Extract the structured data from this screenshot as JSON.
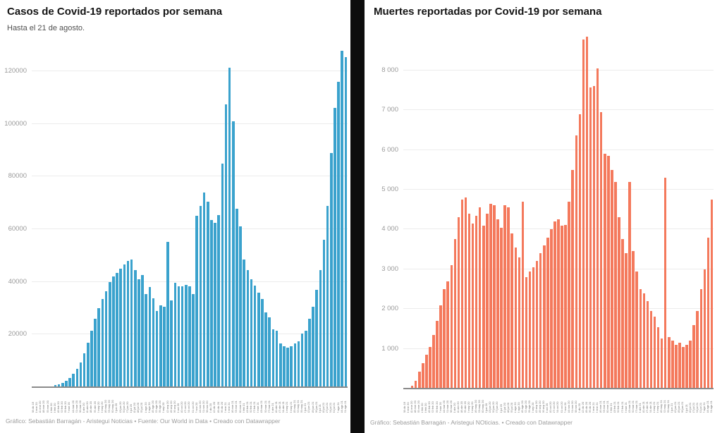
{
  "chart_data": [
    {
      "type": "bar",
      "title": "Casos de Covid-19 reportados por semana",
      "subtitle": "Hasta el 21 de agosto.",
      "footer": "Gráfico: Sebastián Barragán - Aristegui Noticias • Fuente: Our World in Data • Creado con Datawrapper",
      "bar_color": "#3aa2cd",
      "grid": true,
      "legend": "none",
      "ylim": [
        0,
        129700
      ],
      "yticks": [
        {
          "value": 20000,
          "label": "20000"
        },
        {
          "value": 40000,
          "label": "40000"
        },
        {
          "value": 60000,
          "label": "60000"
        },
        {
          "value": 80000,
          "label": "80000"
        },
        {
          "value": 100000,
          "label": "100000"
        },
        {
          "value": 120000,
          "label": "120000"
        }
      ],
      "x_labels": [
        "28 dic 19",
        "4 ene 20",
        "11 ene 20",
        "18 ene 20",
        "25 ene 20",
        "1 feb 20",
        "8 feb 20",
        "15 feb 20",
        "22 feb 20",
        "29 feb 20",
        "7 mar 20",
        "14 mar 20",
        "21 mar 20",
        "28 mar 20",
        "4 abr 20",
        "11 abr 20",
        "18 abr 20",
        "25 abr 20",
        "2 may 20",
        "9 may 20",
        "16 may 20",
        "23 may 20",
        "30 may 20",
        "6 jun 20",
        "13 jun 20",
        "20 jun 20",
        "27 jun 20",
        "4 jul 20",
        "11 jul 20",
        "18 jul 20",
        "25 jul 20",
        "1 ago 20",
        "8 ago 20",
        "15 ago 20",
        "22 ago 20",
        "29 ago 20",
        "5 sep 20",
        "12 sep 20",
        "19 sep 20",
        "26 sep 20",
        "3 oct 20",
        "10 oct 20",
        "17 oct 20",
        "24 oct 20",
        "31 oct 20",
        "7 nov 20",
        "14 nov 20",
        "21 nov 20",
        "28 nov 20",
        "5 dic 20",
        "12 dic 20",
        "19 dic 20",
        "26 dic 20",
        "2 ene 21",
        "9 ene 21",
        "16 ene 21",
        "23 ene 21",
        "30 ene 21",
        "6 feb 21",
        "13 feb 21",
        "20 feb 21",
        "27 feb 21",
        "6 mar 21",
        "13 mar 21",
        "20 mar 21",
        "27 mar 21",
        "3 abr 21",
        "10 abr 21",
        "17 abr 21",
        "24 abr 21",
        "1 may 21",
        "8 may 21",
        "15 may 21",
        "22 may 21",
        "29 may 21",
        "5 jun 21",
        "12 jun 21",
        "19 jun 21",
        "26 jun 21",
        "3 jul 21",
        "10 jul 21",
        "17 jul 21",
        "24 jul 21",
        "31 jul 21",
        "7 ago 21",
        "14 ago 21",
        "21 ago 21"
      ],
      "values": [
        0,
        0,
        0,
        100,
        200,
        400,
        700,
        1100,
        1700,
        2500,
        3600,
        5000,
        7000,
        9500,
        13000,
        17000,
        21500,
        26000,
        30000,
        33500,
        36500,
        40000,
        42000,
        43500,
        45000,
        46500,
        48000,
        48500,
        44500,
        41000,
        42500,
        35400,
        38100,
        33900,
        29000,
        31200,
        30600,
        55300,
        33000,
        39700,
        38400,
        38400,
        38900,
        38400,
        35400,
        65000,
        69000,
        74000,
        70500,
        63500,
        62500,
        65500,
        85000,
        107500,
        121400,
        101000,
        67700,
        61000,
        48500,
        44500,
        41000,
        38500,
        36000,
        33500,
        28500,
        26500,
        22000,
        21500,
        16500,
        15500,
        15000,
        15500,
        16500,
        17500,
        20500,
        21500,
        26000,
        30500,
        37000,
        44500,
        56000,
        69000,
        89000,
        106000,
        116000,
        127800,
        125400
      ]
    },
    {
      "type": "bar",
      "title": "Muertes reportadas por Covid-19 por semana",
      "subtitle": "",
      "footer": "Gráfico: Sebastián Barragán - Aristegui NOticias. • Creado con Datawrapper",
      "bar_color": "#f4795c",
      "grid": true,
      "legend": "none",
      "ylim": [
        0,
        8880
      ],
      "yticks": [
        {
          "value": 1000,
          "label": "1 000"
        },
        {
          "value": 2000,
          "label": "2 000"
        },
        {
          "value": 3000,
          "label": "3 000"
        },
        {
          "value": 4000,
          "label": "4 000"
        },
        {
          "value": 5000,
          "label": "5 000"
        },
        {
          "value": 6000,
          "label": "6 000"
        },
        {
          "value": 7000,
          "label": "7 000"
        },
        {
          "value": 8000,
          "label": "8 000"
        }
      ],
      "x_labels": [
        "28 dic 19",
        "4 ene 20",
        "11 ene 20",
        "18 ene 20",
        "25 ene 20",
        "1 feb 20",
        "8 feb 20",
        "15 feb 20",
        "22 feb 20",
        "29 feb 20",
        "7 mar 20",
        "14 mar 20",
        "21 mar 20",
        "28 mar 20",
        "4 abr 20",
        "11 abr 20",
        "18 abr 20",
        "25 abr 20",
        "2 may 20",
        "9 may 20",
        "16 may 20",
        "23 may 20",
        "30 may 20",
        "6 jun 20",
        "13 jun 20",
        "20 jun 20",
        "27 jun 20",
        "4 jul 20",
        "11 jul 20",
        "18 jul 20",
        "25 jul 20",
        "1 ago 20",
        "8 ago 20",
        "15 ago 20",
        "22 ago 20",
        "29 ago 20",
        "5 sep 20",
        "12 sep 20",
        "19 sep 20",
        "26 sep 20",
        "3 oct 20",
        "10 oct 20",
        "17 oct 20",
        "24 oct 20",
        "31 oct 20",
        "7 nov 20",
        "14 nov 20",
        "21 nov 20",
        "28 nov 20",
        "5 dic 20",
        "12 dic 20",
        "19 dic 20",
        "26 dic 20",
        "2 ene 21",
        "9 ene 21",
        "16 ene 21",
        "23 ene 21",
        "30 ene 21",
        "6 feb 21",
        "13 feb 21",
        "20 feb 21",
        "27 feb 21",
        "6 mar 21",
        "13 mar 21",
        "20 mar 21",
        "27 mar 21",
        "3 abr 21",
        "10 abr 21",
        "17 abr 21",
        "24 abr 21",
        "1 may 21",
        "8 may 21",
        "15 may 21",
        "22 may 21",
        "29 may 21",
        "5 jun 21",
        "12 jun 21",
        "19 jun 21",
        "26 jun 21",
        "3 jul 21",
        "10 jul 21",
        "17 jul 21",
        "24 jul 21",
        "31 jul 21",
        "7 ago 21",
        "14 ago 21",
        "21 ago 21"
      ],
      "values": [
        0,
        0,
        70,
        200,
        420,
        640,
        850,
        1050,
        1350,
        1700,
        2100,
        2500,
        2700,
        3100,
        3750,
        4300,
        4750,
        4800,
        4400,
        4150,
        4350,
        4550,
        4100,
        4400,
        4650,
        4600,
        4250,
        4050,
        4600,
        4550,
        3900,
        3550,
        3300,
        4700,
        2800,
        2950,
        3050,
        3200,
        3400,
        3600,
        3800,
        4000,
        4200,
        4250,
        4100,
        4120,
        4690,
        5500,
        6370,
        6900,
        8780,
        8850,
        7570,
        7600,
        8050,
        6950,
        5900,
        5850,
        5500,
        5200,
        4300,
        3750,
        3400,
        5200,
        3450,
        2950,
        2500,
        2400,
        2200,
        1950,
        1800,
        1550,
        1250,
        5300,
        1300,
        1200,
        1100,
        1150,
        1050,
        1100,
        1200,
        1600,
        1950,
        2500,
        3000,
        3800,
        4750
      ]
    }
  ]
}
